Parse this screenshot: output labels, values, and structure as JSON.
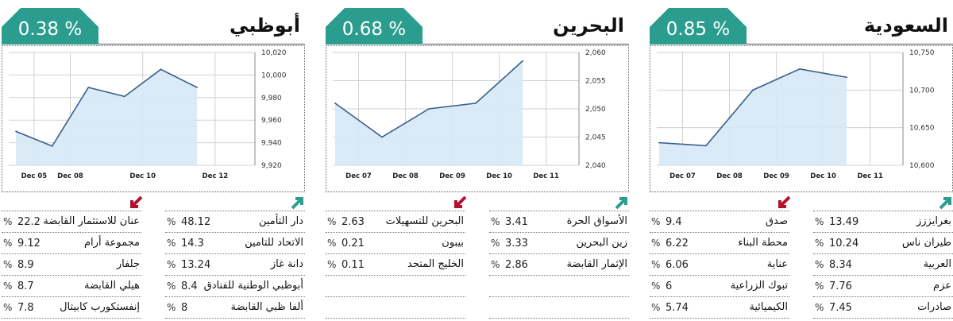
{
  "colors": {
    "teal": "#2a9d8f",
    "down": "#b3122e",
    "line": "#3a5f8a",
    "fill": "#d6e8f5"
  },
  "panels": [
    {
      "key": "abu",
      "title": "أبوظبي",
      "change": "0.38 %",
      "arrows": {
        "left": "down",
        "right": "up"
      },
      "left_rows": [
        {
          "pct": "%",
          "value": "22.2",
          "name": "عنان للاستثمار القابضة"
        },
        {
          "pct": "%",
          "value": "9.12",
          "name": "مجموعة أرام"
        },
        {
          "pct": "%",
          "value": "8.9",
          "name": "جلفار"
        },
        {
          "pct": "%",
          "value": "8.7",
          "name": "هيلي القابضة"
        },
        {
          "pct": "%",
          "value": "7.8",
          "name": "إنفستكورب كابيتال"
        }
      ],
      "right_rows": [
        {
          "pct": "%",
          "value": "48.12",
          "name": "دار التأمين"
        },
        {
          "pct": "%",
          "value": "14.3",
          "name": "الاتحاد للتامين"
        },
        {
          "pct": "%",
          "value": "13.24",
          "name": "دانة غاز"
        },
        {
          "pct": "%",
          "value": "8.4",
          "name": "أبوظبي الوطنية للفنادق"
        },
        {
          "pct": "%",
          "value": "8",
          "name": "ألفا ظبي القابضة"
        }
      ]
    },
    {
      "key": "bah",
      "title": "البحرين",
      "change": "0.68 %",
      "arrows": {
        "left": "down",
        "right": "up"
      },
      "left_rows": [
        {
          "pct": "%",
          "value": "2.63",
          "name": "البحرين للتسهيلات"
        },
        {
          "pct": "%",
          "value": "0.21",
          "name": "بيبون"
        },
        {
          "pct": "%",
          "value": "0.11",
          "name": "الخليج المتحد"
        },
        {
          "pct": "",
          "value": "",
          "name": ""
        },
        {
          "pct": "",
          "value": "",
          "name": ""
        }
      ],
      "right_rows": [
        {
          "pct": "%",
          "value": "3.41",
          "name": "الأسواق الحرة"
        },
        {
          "pct": "%",
          "value": "3.33",
          "name": "زين البحرين"
        },
        {
          "pct": "%",
          "value": "2.86",
          "name": "الإثمار القابضة"
        },
        {
          "pct": "",
          "value": "",
          "name": ""
        },
        {
          "pct": "",
          "value": "",
          "name": ""
        }
      ]
    },
    {
      "key": "sau",
      "title": "السعودية",
      "change": "0.85 %",
      "arrows": {
        "left": "down",
        "right": "up"
      },
      "left_rows": [
        {
          "pct": "%",
          "value": "9.4",
          "name": "صدق"
        },
        {
          "pct": "%",
          "value": "6.22",
          "name": "محطة البناء"
        },
        {
          "pct": "%",
          "value": "6.06",
          "name": "عناية"
        },
        {
          "pct": "%",
          "value": "6",
          "name": "تبوك الزراعية"
        },
        {
          "pct": "%",
          "value": "5.74",
          "name": "الكيميائية"
        }
      ],
      "right_rows": [
        {
          "pct": "%",
          "value": "13.49",
          "name": "بغرايززز"
        },
        {
          "pct": "%",
          "value": "10.24",
          "name": "طيران ناس"
        },
        {
          "pct": "%",
          "value": "8.34",
          "name": "العربية"
        },
        {
          "pct": "%",
          "value": "7.76",
          "name": "عزم"
        },
        {
          "pct": "%",
          "value": "7.45",
          "name": "صادرات"
        }
      ]
    }
  ],
  "chart_data": [
    {
      "type": "area",
      "title": "أبوظبي",
      "x": [
        0,
        1,
        2,
        3,
        4,
        5
      ],
      "values": [
        9950,
        9937,
        9989,
        9981,
        10005,
        9989
      ],
      "xticks": [
        {
          "at": 0.5,
          "label": "Dec 05"
        },
        {
          "at": 1.5,
          "label": "Dec 08"
        },
        {
          "at": 3.5,
          "label": "Dec 10"
        },
        {
          "at": 5.5,
          "label": "Dec 12"
        }
      ],
      "xlim": [
        -0.2,
        6.6
      ],
      "yticks": [
        9920,
        9940,
        9960,
        9980,
        10000,
        10020
      ],
      "yticklabels": [
        "9,920",
        "9,940",
        "9,960",
        "9,980",
        "10,000",
        "10,020"
      ],
      "ylim": [
        9920,
        10020
      ],
      "grid": true
    },
    {
      "type": "area",
      "title": "البحرين",
      "x": [
        0,
        1,
        2,
        3,
        4
      ],
      "values": [
        2051,
        2045,
        2050,
        2051,
        2058.5
      ],
      "xticks": [
        {
          "at": 0.5,
          "label": "Dec 07"
        },
        {
          "at": 1.5,
          "label": "Dec 08"
        },
        {
          "at": 2.5,
          "label": "Dec 09"
        },
        {
          "at": 3.5,
          "label": "Dec 10"
        },
        {
          "at": 4.5,
          "label": "Dec 11"
        }
      ],
      "xlim": [
        -0.05,
        5.2
      ],
      "yticks": [
        2040,
        2045,
        2050,
        2055,
        2060
      ],
      "yticklabels": [
        "2,040",
        "2,045",
        "2,050",
        "2,055",
        "2,060"
      ],
      "ylim": [
        2040,
        2060
      ],
      "grid": true
    },
    {
      "type": "area",
      "title": "السعودية",
      "x": [
        0,
        1,
        2,
        3,
        4
      ],
      "values": [
        10630,
        10626,
        10700,
        10728,
        10717
      ],
      "xticks": [
        {
          "at": 0.5,
          "label": "Dec 07"
        },
        {
          "at": 1.5,
          "label": "Dec 08"
        },
        {
          "at": 2.5,
          "label": "Dec 09"
        },
        {
          "at": 3.5,
          "label": "Dec 10"
        },
        {
          "at": 4.5,
          "label": "Dec 11"
        }
      ],
      "xlim": [
        -0.05,
        5.2
      ],
      "yticks": [
        10600,
        10650,
        10700,
        10750
      ],
      "yticklabels": [
        "10,600",
        "10,650",
        "10,700",
        "10,750"
      ],
      "ylim": [
        10600,
        10750
      ],
      "grid": true
    }
  ]
}
